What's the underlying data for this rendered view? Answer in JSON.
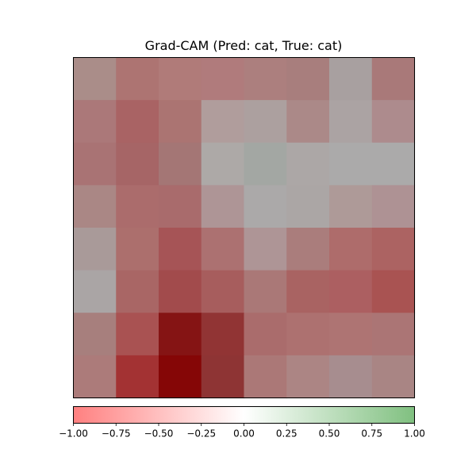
{
  "chart_data": {
    "type": "heatmap",
    "title": "Grad-CAM (Pred: cat, True: cat)",
    "rows": 8,
    "cols": 8,
    "cell_colors": [
      [
        "#aa8d89",
        "#ad7472",
        "#b07b79",
        "#b07b7c",
        "#ac7f7e",
        "#a87e7d",
        "#a8a0a0",
        "#a97979"
      ],
      [
        "#ab7879",
        "#a96364",
        "#ab7472",
        "#b09d9c",
        "#aca09f",
        "#ab8988",
        "#aba3a3",
        "#ad8b8d"
      ],
      [
        "#a97374",
        "#a66566",
        "#a47675",
        "#ada9a7",
        "#a3a7a3",
        "#aca7a6",
        "#abaaaa",
        "#abaaaa"
      ],
      [
        "#aa8785",
        "#ab6c6c",
        "#a96b6c",
        "#ae9596",
        "#aba9a9",
        "#aba6a5",
        "#ae9a98",
        "#ae9294"
      ],
      [
        "#a99a99",
        "#ac6f6d",
        "#a65456",
        "#ac7171",
        "#ae9596",
        "#aa7d7c",
        "#ae6c6b",
        "#ac6362"
      ],
      [
        "#aaa5a5",
        "#a96665",
        "#a24b4c",
        "#a75d5d",
        "#aa7877",
        "#a96362",
        "#ac5f61",
        "#a95352"
      ],
      [
        "#a77f7d",
        "#a95252",
        "#851414",
        "#913434",
        "#aa6c6c",
        "#ad7170",
        "#ae7473",
        "#ab7575"
      ],
      [
        "#ac7b7a",
        "#a33233",
        "#850606",
        "#8e3434",
        "#ab7877",
        "#ac8584",
        "#a78d8f",
        "#a98584"
      ]
    ],
    "colorbar": {
      "range": [
        -1.0,
        1.0
      ],
      "colors": [
        "#ff8080",
        "#ffffff",
        "#80c080"
      ],
      "tick_values": [
        -1.0,
        -0.75,
        -0.5,
        -0.25,
        0.0,
        0.25,
        0.5,
        0.75,
        1.0
      ],
      "tick_labels": [
        "−1.00",
        "−0.75",
        "−0.50",
        "−0.25",
        "0.00",
        "0.25",
        "0.50",
        "0.75",
        "1.00"
      ]
    }
  }
}
